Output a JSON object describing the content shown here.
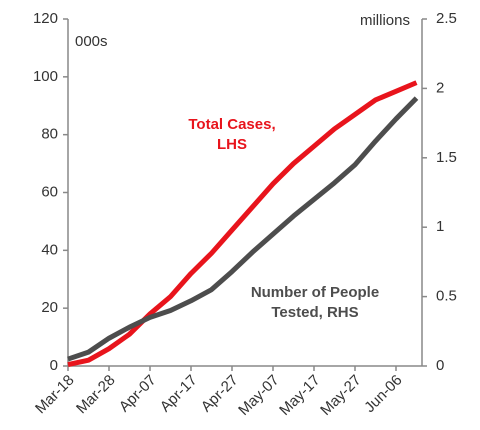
{
  "chart_data": {
    "type": "line",
    "categories": [
      "Mar-18",
      null,
      "Mar-28",
      null,
      "Apr-07",
      null,
      "Apr-17",
      null,
      "Apr-27",
      null,
      "May-07",
      null,
      "May-17",
      null,
      "May-27",
      null,
      "Jun-06",
      null
    ],
    "series": [
      {
        "name": "Total Cases, LHS",
        "color": "#e8141c",
        "axis": "y",
        "values": [
          0.5,
          2,
          6,
          11,
          18,
          24,
          32,
          39,
          47,
          55,
          63,
          70,
          76,
          82,
          87,
          92,
          95,
          98
        ]
      },
      {
        "name": "Number of People Tested, RHS",
        "color": "#4d4d4d",
        "axis": "y2",
        "values": [
          0.05,
          0.1,
          0.2,
          0.28,
          0.35,
          0.4,
          0.47,
          0.55,
          0.68,
          0.82,
          0.95,
          1.08,
          1.2,
          1.32,
          1.45,
          1.62,
          1.78,
          1.93
        ]
      }
    ],
    "ylim": [
      0,
      120
    ],
    "yticks": [
      0,
      20,
      40,
      60,
      80,
      100,
      120
    ],
    "y2lim": [
      0,
      2.5
    ],
    "y2ticks": [
      0,
      0.5,
      1,
      1.5,
      2,
      2.5
    ],
    "ylabel": "000s",
    "y2label": "millions",
    "annotations": [
      {
        "lines": [
          "Total Cases,",
          "LHS"
        ],
        "color": "#e8141c"
      },
      {
        "lines": [
          "Number of People",
          "Tested, RHS"
        ],
        "color": "#4d4d4d"
      }
    ]
  }
}
